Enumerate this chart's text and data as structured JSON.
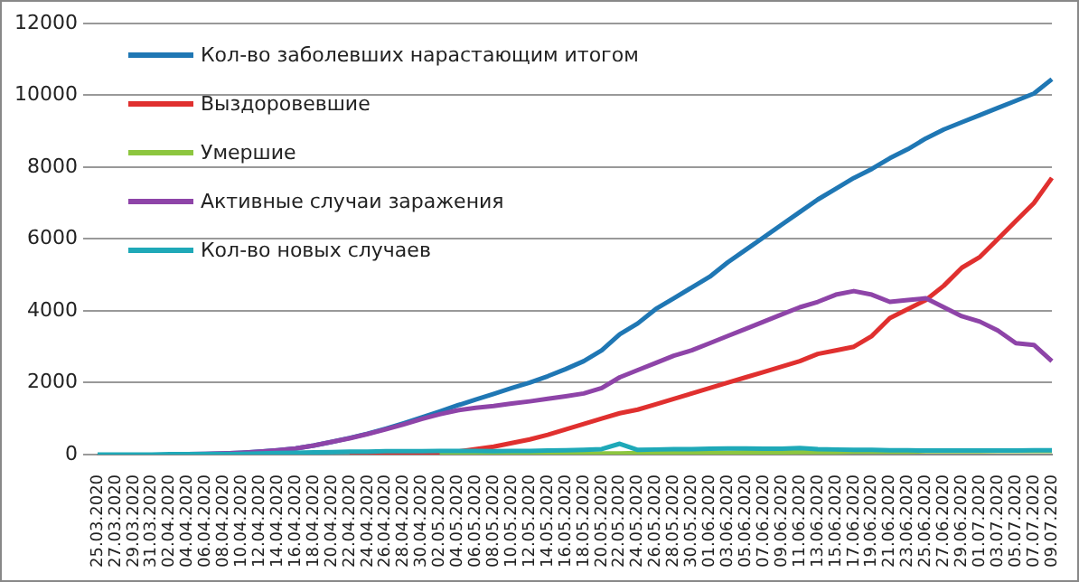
{
  "chart_data": {
    "type": "line",
    "categories": [
      "25.03.2020",
      "27.03.2020",
      "29.03.2020",
      "31.03.2020",
      "02.04.2020",
      "04.04.2020",
      "06.04.2020",
      "08.04.2020",
      "10.04.2020",
      "12.04.2020",
      "14.04.2020",
      "16.04.2020",
      "18.04.2020",
      "20.04.2020",
      "22.04.2020",
      "24.04.2020",
      "26.04.2020",
      "28.04.2020",
      "30.04.2020",
      "02.05.2020",
      "04.05.2020",
      "06.05.2020",
      "08.05.2020",
      "10.05.2020",
      "12.05.2020",
      "14.05.2020",
      "16.05.2020",
      "18.05.2020",
      "20.05.2020",
      "22.05.2020",
      "24.05.2020",
      "26.05.2020",
      "28.05.2020",
      "30.05.2020",
      "01.06.2020",
      "03.06.2020",
      "05.06.2020",
      "07.06.2020",
      "09.06.2020",
      "11.06.2020",
      "13.06.2020",
      "15.06.2020",
      "17.06.2020",
      "19.06.2020",
      "21.06.2020",
      "23.06.2020",
      "25.06.2020",
      "27.06.2020",
      "29.06.2020",
      "01.07.2020",
      "03.07.2020",
      "05.07.2020",
      "07.07.2020",
      "09.07.2020"
    ],
    "series": [
      {
        "name": "Кол-во заболевших нарастающим итогом",
        "color": "#1f77b4",
        "values": [
          null,
          null,
          null,
          null,
          10,
          10,
          20,
          30,
          50,
          80,
          120,
          170,
          250,
          350,
          460,
          580,
          720,
          870,
          1030,
          1200,
          1370,
          1530,
          1690,
          1850,
          2000,
          2180,
          2380,
          2600,
          2900,
          3350,
          3650,
          4050,
          4350,
          4650,
          4950,
          5350,
          5700,
          6050,
          6400,
          6750,
          7100,
          7400,
          7700,
          7950,
          8250,
          8500,
          8800,
          9050,
          9250,
          9450,
          9650,
          9850,
          10050,
          10450
        ]
      },
      {
        "name": "Выздоровевшие",
        "color": "#e0302f",
        "values": [
          null,
          null,
          null,
          null,
          null,
          null,
          null,
          null,
          null,
          null,
          null,
          null,
          null,
          null,
          0,
          0,
          0,
          0,
          10,
          30,
          80,
          150,
          220,
          320,
          420,
          550,
          700,
          850,
          1000,
          1150,
          1250,
          1400,
          1550,
          1700,
          1850,
          2000,
          2150,
          2300,
          2450,
          2600,
          2800,
          2900,
          3000,
          3300,
          3800,
          4050,
          4300,
          4700,
          5200,
          5500,
          6000,
          6500,
          7000,
          7700
        ]
      },
      {
        "name": "Умершие",
        "color": "#8dc63f",
        "values": [
          null,
          null,
          null,
          null,
          null,
          null,
          null,
          null,
          null,
          null,
          null,
          null,
          null,
          null,
          null,
          null,
          null,
          null,
          null,
          0,
          10,
          10,
          10,
          10,
          20,
          20,
          20,
          30,
          30,
          30,
          40,
          40,
          40,
          50,
          50,
          50,
          60,
          60,
          60,
          70,
          70,
          70,
          80,
          80,
          80,
          80,
          90,
          90,
          90,
          90,
          100,
          100,
          100,
          100
        ]
      },
      {
        "name": "Активные случаи заражения",
        "color": "#8e44a8",
        "values": [
          null,
          null,
          null,
          null,
          10,
          10,
          20,
          30,
          50,
          80,
          120,
          170,
          250,
          350,
          450,
          570,
          700,
          840,
          990,
          1120,
          1230,
          1300,
          1350,
          1420,
          1480,
          1550,
          1620,
          1700,
          1850,
          2150,
          2350,
          2550,
          2750,
          2900,
          3100,
          3300,
          3500,
          3700,
          3900,
          4100,
          4250,
          4450,
          4550,
          4450,
          4250,
          4300,
          4350,
          4100,
          3850,
          3700,
          3450,
          3100,
          3050,
          2600
        ]
      },
      {
        "name": "Кол-во новых случаев",
        "color": "#1fa9b8",
        "values": [
          0,
          0,
          0,
          0,
          10,
          10,
          10,
          10,
          20,
          30,
          40,
          50,
          60,
          70,
          80,
          80,
          90,
          90,
          90,
          100,
          100,
          100,
          90,
          100,
          100,
          110,
          120,
          130,
          150,
          300,
          130,
          140,
          150,
          150,
          160,
          170,
          170,
          160,
          160,
          180,
          150,
          140,
          130,
          130,
          120,
          120,
          110,
          110,
          110,
          110,
          110,
          110,
          120,
          120
        ]
      }
    ],
    "ylim": [
      0,
      12000
    ],
    "yticks": [
      0,
      2000,
      4000,
      6000,
      8000,
      10000,
      12000
    ],
    "grid": "y",
    "legend": "top left",
    "marker": "none",
    "line_style": "solid"
  }
}
